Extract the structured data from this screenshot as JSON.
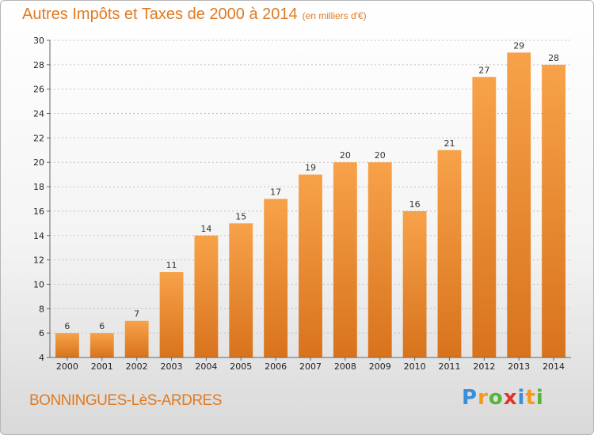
{
  "chart_data": {
    "type": "bar",
    "title": "Autres Impôts et Taxes de 2000 à 2014",
    "subtitle": "(en milliers d'€)",
    "categories": [
      "2000",
      "2001",
      "2002",
      "2003",
      "2004",
      "2005",
      "2006",
      "2007",
      "2008",
      "2009",
      "2010",
      "2011",
      "2012",
      "2013",
      "2014"
    ],
    "values": [
      6,
      6,
      7,
      11,
      14,
      15,
      17,
      19,
      20,
      20,
      16,
      21,
      27,
      29,
      28
    ],
    "xlabel": "",
    "ylabel": "",
    "ylim": [
      4,
      30
    ],
    "yticks": [
      4,
      6,
      8,
      10,
      12,
      14,
      16,
      18,
      20,
      22,
      24,
      26,
      28,
      30
    ],
    "grid": "horizontal",
    "bar_color_top": "#f7a24a",
    "bar_color_bottom": "#d8731c"
  },
  "location": "BONNINGUES-LèS-ARDRES",
  "brand": {
    "letters": [
      "P",
      "r",
      "o",
      "x",
      "i",
      "t",
      "i"
    ],
    "colors": [
      "#3a8fd6",
      "#f39a1c",
      "#55b637",
      "#e4322b",
      "#3a8fd6",
      "#f39a1c",
      "#55b637"
    ]
  }
}
